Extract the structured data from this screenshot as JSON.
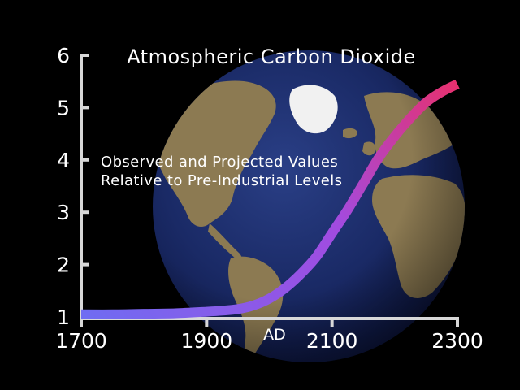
{
  "chart_data": {
    "type": "line",
    "title": "Atmospheric Carbon Dioxide",
    "subtitle_lines": [
      "Observed and Projected Values",
      "Relative to Pre-Industrial Levels"
    ],
    "xlabel": "AD",
    "ylabel": "",
    "xlim": [
      1700,
      2300
    ],
    "ylim": [
      1,
      6
    ],
    "x_ticks": [
      1700,
      1900,
      2100,
      2300
    ],
    "y_ticks": [
      1,
      2,
      3,
      4,
      5,
      6
    ],
    "grid": false,
    "series": [
      {
        "x": [
          1700,
          1750,
          1800,
          1850,
          1900,
          1925,
          1950,
          1975,
          2000,
          2025,
          2050,
          2075,
          2100,
          2125,
          2150,
          2175,
          2200,
          2225,
          2250,
          2275,
          2300
        ],
        "values": [
          1.05,
          1.05,
          1.06,
          1.07,
          1.1,
          1.12,
          1.15,
          1.22,
          1.35,
          1.55,
          1.82,
          2.15,
          2.6,
          3.05,
          3.55,
          4.05,
          4.45,
          4.8,
          5.1,
          5.3,
          5.45
        ],
        "color_start": "#6f6cf2",
        "color_mid": "#a24be0",
        "color_end": "#e8306d"
      }
    ],
    "background": "earth-globe-image"
  }
}
